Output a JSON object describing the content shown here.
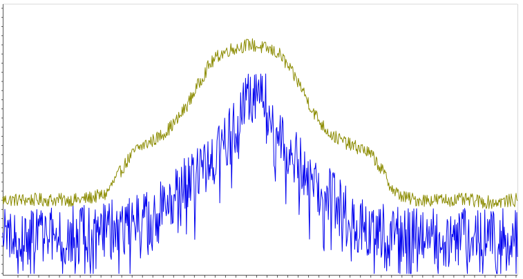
{
  "chart_data": {
    "type": "line",
    "title": "",
    "xlabel": "",
    "ylabel": "",
    "grid": false,
    "legend": "none",
    "xlim": [
      0,
      100
    ],
    "ylim": [
      0,
      100
    ],
    "series": [
      {
        "color": "#8b8b00",
        "description_points": [
          [
            0,
            28
          ],
          [
            5,
            28
          ],
          [
            10,
            28
          ],
          [
            15,
            28
          ],
          [
            20,
            30
          ],
          [
            22,
            36
          ],
          [
            24,
            42
          ],
          [
            26,
            47
          ],
          [
            28,
            49
          ],
          [
            30,
            51
          ],
          [
            32,
            54
          ],
          [
            34,
            58
          ],
          [
            36,
            64
          ],
          [
            38,
            71
          ],
          [
            40,
            78
          ],
          [
            42,
            82
          ],
          [
            44,
            84
          ],
          [
            46,
            85
          ],
          [
            48,
            86
          ],
          [
            50,
            85
          ],
          [
            52,
            84
          ],
          [
            54,
            82
          ],
          [
            56,
            76
          ],
          [
            58,
            70
          ],
          [
            60,
            62
          ],
          [
            62,
            56
          ],
          [
            64,
            52
          ],
          [
            66,
            50
          ],
          [
            68,
            48
          ],
          [
            70,
            47
          ],
          [
            72,
            44
          ],
          [
            74,
            38
          ],
          [
            76,
            31
          ],
          [
            78,
            29
          ],
          [
            80,
            28
          ],
          [
            85,
            28
          ],
          [
            90,
            28
          ],
          [
            95,
            27
          ],
          [
            100,
            28
          ]
        ],
        "noise": 2.5
      },
      {
        "color": "#0000ee",
        "description_points": [
          [
            0,
            14
          ],
          [
            5,
            14
          ],
          [
            10,
            14
          ],
          [
            15,
            15
          ],
          [
            20,
            17
          ],
          [
            25,
            19
          ],
          [
            30,
            23
          ],
          [
            34,
            30
          ],
          [
            38,
            38
          ],
          [
            42,
            46
          ],
          [
            44,
            52
          ],
          [
            46,
            58
          ],
          [
            48,
            66
          ],
          [
            50,
            70
          ],
          [
            52,
            62
          ],
          [
            54,
            54
          ],
          [
            56,
            46
          ],
          [
            58,
            40
          ],
          [
            60,
            35
          ],
          [
            62,
            31
          ],
          [
            64,
            28
          ],
          [
            66,
            24
          ],
          [
            68,
            20
          ],
          [
            70,
            17
          ],
          [
            75,
            15
          ],
          [
            80,
            14
          ],
          [
            85,
            14
          ],
          [
            90,
            14
          ],
          [
            95,
            14
          ],
          [
            100,
            14
          ]
        ],
        "noise": 11
      }
    ],
    "x_tick_count": 49
  }
}
